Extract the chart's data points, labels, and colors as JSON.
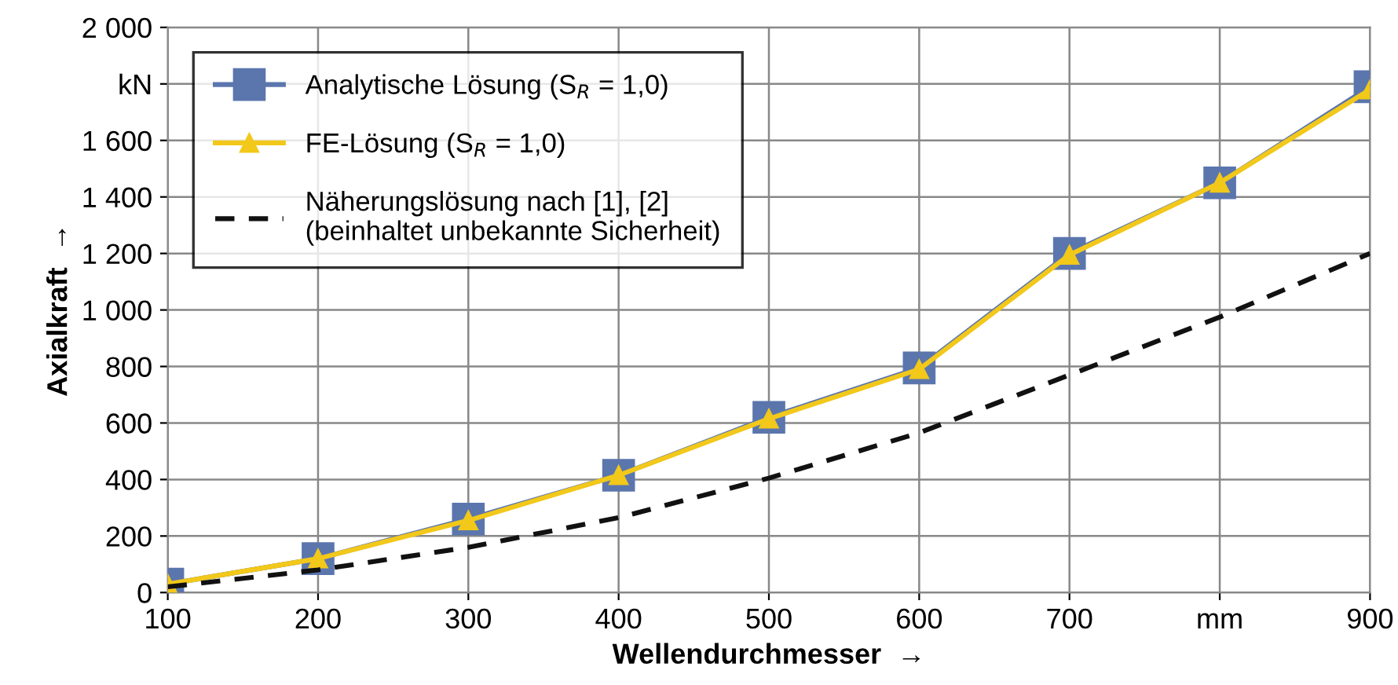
{
  "chart_data": {
    "type": "line",
    "xlabel": "Wellendurchmesser  →",
    "ylabel": "Axialkraft  →",
    "x": [
      100,
      200,
      300,
      400,
      500,
      600,
      700,
      800,
      900
    ],
    "series": [
      {
        "name": "Analytische Lösung (S$_{R}$ = 1,0)",
        "color": "#5b76ad",
        "marker": "square",
        "line_style": "solid",
        "values": [
          30,
          120,
          260,
          415,
          620,
          795,
          1200,
          1450,
          1790
        ]
      },
      {
        "name": "FE-Lösung (S$_{R}$ = 1,0)",
        "color": "#f2c81a",
        "marker": "triangle",
        "line_style": "solid",
        "values": [
          30,
          120,
          255,
          415,
          615,
          790,
          1195,
          1450,
          1780
        ]
      },
      {
        "name": "Näherungslösung nach [1], [2]\n(beinhaltet unbekannte Sicherheit)",
        "color": "#111111",
        "marker": "none",
        "line_style": "dashed",
        "values": [
          20,
          80,
          160,
          265,
          405,
          565,
          770,
          975,
          1200
        ]
      }
    ],
    "xlim": [
      100,
      900
    ],
    "ylim": [
      0,
      2000
    ],
    "xticks": [
      100,
      200,
      300,
      400,
      500,
      600,
      700,
      {
        "value": 800,
        "label": "mm"
      },
      900
    ],
    "yticks": [
      0,
      200,
      400,
      600,
      800,
      {
        "value": 1000,
        "label": "1 000"
      },
      {
        "value": 1200,
        "label": "1 200"
      },
      {
        "value": 1400,
        "label": "1 400"
      },
      {
        "value": 1600,
        "label": "1 600"
      },
      {
        "value": 1800,
        "label": "kN"
      },
      {
        "value": 2000,
        "label": "2 000"
      }
    ],
    "grid": true,
    "legend": "top left"
  }
}
